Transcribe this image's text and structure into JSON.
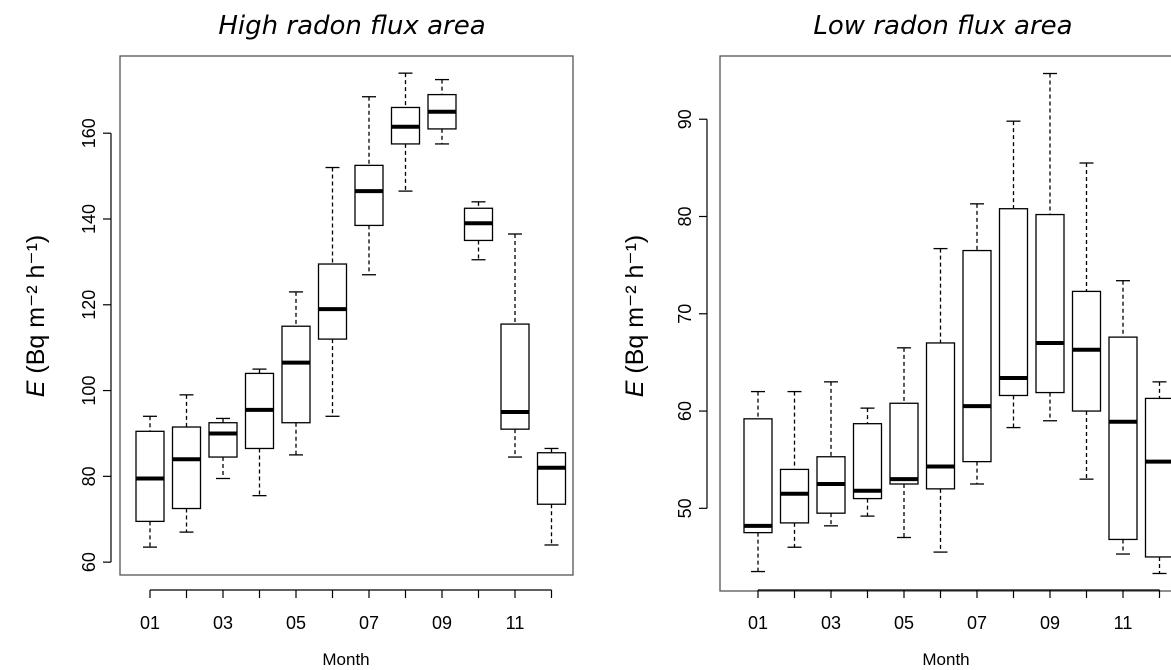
{
  "chart_data": [
    {
      "type": "boxplot",
      "title": "High radon flux area",
      "xlabel": "Month",
      "ylabel_italic": "E",
      "ylabel_rest": " (Bq m⁻² h⁻¹)",
      "ylim": [
        57,
        178
      ],
      "yticks": [
        60,
        80,
        100,
        120,
        140,
        160
      ],
      "categories": [
        "01",
        "02",
        "03",
        "04",
        "05",
        "06",
        "07",
        "08",
        "09",
        "10",
        "11",
        "12"
      ],
      "xtick_labels": [
        "01",
        "",
        "03",
        "",
        "05",
        "",
        "07",
        "",
        "09",
        "",
        "11",
        ""
      ],
      "boxes": [
        {
          "min": 63.5,
          "q1": 69.5,
          "median": 79.5,
          "q3": 90.5,
          "max": 94
        },
        {
          "min": 67,
          "q1": 72.5,
          "median": 84,
          "q3": 91.5,
          "max": 99
        },
        {
          "min": 79.5,
          "q1": 84.5,
          "median": 90,
          "q3": 92.5,
          "max": 93.5
        },
        {
          "min": 75.5,
          "q1": 86.5,
          "median": 95.5,
          "q3": 104,
          "max": 105
        },
        {
          "min": 85,
          "q1": 92.5,
          "median": 106.5,
          "q3": 115,
          "max": 123
        },
        {
          "min": 94,
          "q1": 112,
          "median": 119,
          "q3": 129.5,
          "max": 152
        },
        {
          "min": 127,
          "q1": 138.5,
          "median": 146.5,
          "q3": 152.5,
          "max": 168.5
        },
        {
          "min": 146.5,
          "q1": 157.5,
          "median": 161.5,
          "q3": 166,
          "max": 174
        },
        {
          "min": 157.5,
          "q1": 161,
          "median": 165,
          "q3": 169,
          "max": 172.5
        },
        {
          "min": 130.5,
          "q1": 135,
          "median": 139,
          "q3": 142.5,
          "max": 144
        },
        {
          "min": 84.5,
          "q1": 91,
          "median": 95,
          "q3": 115.5,
          "max": 136.5
        },
        {
          "min": 64,
          "q1": 73.5,
          "median": 82,
          "q3": 85.5,
          "max": 86.5
        }
      ]
    },
    {
      "type": "boxplot",
      "title": "Low radon flux area",
      "xlabel": "Month",
      "ylabel_italic": "E",
      "ylabel_rest": " (Bq m⁻² h⁻¹)",
      "ylim": [
        41.5,
        96.5
      ],
      "yticks": [
        50,
        60,
        70,
        80,
        90
      ],
      "categories": [
        "01",
        "02",
        "03",
        "04",
        "05",
        "06",
        "07",
        "08",
        "09",
        "10",
        "11",
        "12"
      ],
      "xtick_labels": [
        "01",
        "",
        "03",
        "",
        "05",
        "",
        "07",
        "",
        "09",
        "",
        "11",
        ""
      ],
      "boxes": [
        {
          "min": 43.5,
          "q1": 47.5,
          "median": 48.2,
          "q3": 59.2,
          "max": 62
        },
        {
          "min": 46,
          "q1": 48.5,
          "median": 51.5,
          "q3": 54,
          "max": 62
        },
        {
          "min": 48.2,
          "q1": 49.5,
          "median": 52.5,
          "q3": 55.3,
          "max": 63
        },
        {
          "min": 49.2,
          "q1": 51,
          "median": 51.8,
          "q3": 58.7,
          "max": 60.3
        },
        {
          "min": 47,
          "q1": 52.5,
          "median": 53,
          "q3": 60.8,
          "max": 66.5
        },
        {
          "min": 45.5,
          "q1": 52,
          "median": 54.3,
          "q3": 67,
          "max": 76.7
        },
        {
          "min": 52.5,
          "q1": 54.8,
          "median": 60.5,
          "q3": 76.5,
          "max": 81.3
        },
        {
          "min": 58.3,
          "q1": 61.6,
          "median": 63.4,
          "q3": 80.8,
          "max": 89.8
        },
        {
          "min": 59,
          "q1": 61.9,
          "median": 67,
          "q3": 80.2,
          "max": 94.7
        },
        {
          "min": 53,
          "q1": 60,
          "median": 66.3,
          "q3": 72.3,
          "max": 85.5
        },
        {
          "min": 45.3,
          "q1": 46.8,
          "median": 58.9,
          "q3": 67.6,
          "max": 73.4
        },
        {
          "min": 43.3,
          "q1": 45,
          "median": 54.8,
          "q3": 61.3,
          "max": 63
        }
      ]
    }
  ]
}
